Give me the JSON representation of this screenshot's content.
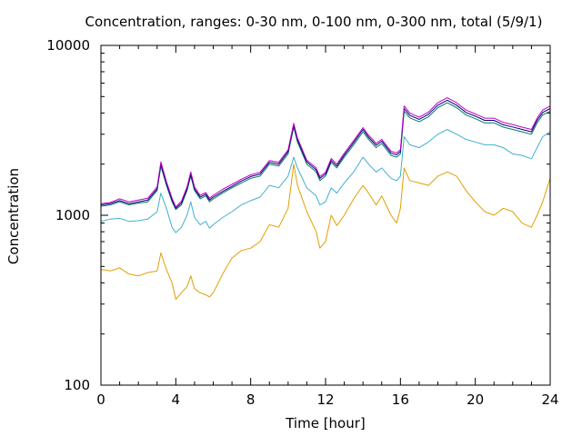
{
  "chart_data": {
    "type": "line",
    "title": "Concentration, ranges: 0-30 nm, 0-100 nm, 0-300 nm, total (5/9/1)",
    "xlabel": "Time [hour]",
    "ylabel": "Concentration",
    "xlim": [
      0,
      24
    ],
    "ylim": [
      100,
      10000
    ],
    "yscale": "log",
    "grid": false,
    "x_ticks": [
      0,
      4,
      8,
      12,
      16,
      20,
      24
    ],
    "y_ticks": [
      100,
      1000,
      10000
    ],
    "x_tick_labels": [
      "0",
      "4",
      "8",
      "12",
      "16",
      "20",
      "24"
    ],
    "y_tick_labels": [
      "100",
      "1000",
      "10000"
    ],
    "series": [
      {
        "color": "#e0a000",
        "points": [
          [
            0,
            480
          ],
          [
            0.5,
            470
          ],
          [
            1,
            490
          ],
          [
            1.5,
            450
          ],
          [
            2,
            440
          ],
          [
            2.5,
            460
          ],
          [
            3,
            470
          ],
          [
            3.2,
            600
          ],
          [
            3.5,
            480
          ],
          [
            3.8,
            400
          ],
          [
            4,
            320
          ],
          [
            4.3,
            350
          ],
          [
            4.6,
            380
          ],
          [
            4.8,
            440
          ],
          [
            5,
            370
          ],
          [
            5.3,
            350
          ],
          [
            5.6,
            340
          ],
          [
            5.8,
            330
          ],
          [
            6,
            350
          ],
          [
            6.5,
            450
          ],
          [
            7,
            560
          ],
          [
            7.5,
            620
          ],
          [
            8,
            640
          ],
          [
            8.5,
            700
          ],
          [
            9,
            880
          ],
          [
            9.5,
            850
          ],
          [
            10,
            1100
          ],
          [
            10.3,
            2000
          ],
          [
            10.5,
            1500
          ],
          [
            11,
            1050
          ],
          [
            11.5,
            800
          ],
          [
            11.7,
            640
          ],
          [
            12,
            700
          ],
          [
            12.3,
            1000
          ],
          [
            12.6,
            870
          ],
          [
            13,
            1000
          ],
          [
            13.5,
            1250
          ],
          [
            14,
            1500
          ],
          [
            14.3,
            1350
          ],
          [
            14.7,
            1150
          ],
          [
            15,
            1300
          ],
          [
            15.5,
            1000
          ],
          [
            15.8,
            900
          ],
          [
            16,
            1100
          ],
          [
            16.2,
            1900
          ],
          [
            16.5,
            1600
          ],
          [
            17,
            1550
          ],
          [
            17.5,
            1500
          ],
          [
            18,
            1700
          ],
          [
            18.5,
            1800
          ],
          [
            19,
            1700
          ],
          [
            19.5,
            1400
          ],
          [
            20,
            1200
          ],
          [
            20.5,
            1050
          ],
          [
            21,
            1000
          ],
          [
            21.5,
            1100
          ],
          [
            22,
            1050
          ],
          [
            22.5,
            900
          ],
          [
            23,
            850
          ],
          [
            23.3,
            1000
          ],
          [
            23.6,
            1200
          ],
          [
            24,
            1650
          ]
        ]
      },
      {
        "color": "#40b0d0",
        "points": [
          [
            0,
            920
          ],
          [
            0.5,
            950
          ],
          [
            1,
            960
          ],
          [
            1.5,
            920
          ],
          [
            2,
            930
          ],
          [
            2.5,
            950
          ],
          [
            3,
            1050
          ],
          [
            3.2,
            1350
          ],
          [
            3.5,
            1100
          ],
          [
            3.8,
            850
          ],
          [
            4,
            790
          ],
          [
            4.3,
            850
          ],
          [
            4.6,
            1000
          ],
          [
            4.8,
            1200
          ],
          [
            5,
            970
          ],
          [
            5.3,
            880
          ],
          [
            5.6,
            920
          ],
          [
            5.8,
            840
          ],
          [
            6,
            880
          ],
          [
            6.5,
            970
          ],
          [
            7,
            1050
          ],
          [
            7.5,
            1150
          ],
          [
            8,
            1220
          ],
          [
            8.5,
            1280
          ],
          [
            9,
            1500
          ],
          [
            9.5,
            1450
          ],
          [
            10,
            1700
          ],
          [
            10.3,
            2200
          ],
          [
            10.5,
            1900
          ],
          [
            11,
            1450
          ],
          [
            11.5,
            1300
          ],
          [
            11.7,
            1150
          ],
          [
            12,
            1200
          ],
          [
            12.3,
            1450
          ],
          [
            12.6,
            1350
          ],
          [
            13,
            1550
          ],
          [
            13.5,
            1800
          ],
          [
            14,
            2200
          ],
          [
            14.3,
            2000
          ],
          [
            14.7,
            1800
          ],
          [
            15,
            1900
          ],
          [
            15.5,
            1650
          ],
          [
            15.8,
            1600
          ],
          [
            16,
            1700
          ],
          [
            16.2,
            2900
          ],
          [
            16.5,
            2600
          ],
          [
            17,
            2500
          ],
          [
            17.5,
            2700
          ],
          [
            18,
            3000
          ],
          [
            18.5,
            3200
          ],
          [
            19,
            3000
          ],
          [
            19.5,
            2800
          ],
          [
            20,
            2700
          ],
          [
            20.5,
            2600
          ],
          [
            21,
            2600
          ],
          [
            21.5,
            2500
          ],
          [
            22,
            2300
          ],
          [
            22.5,
            2250
          ],
          [
            23,
            2150
          ],
          [
            23.3,
            2500
          ],
          [
            23.6,
            2900
          ],
          [
            24,
            3100
          ]
        ]
      },
      {
        "color": "#0a7a60",
        "points": [
          [
            0,
            1130
          ],
          [
            0.5,
            1150
          ],
          [
            1,
            1200
          ],
          [
            1.5,
            1150
          ],
          [
            2,
            1180
          ],
          [
            2.5,
            1200
          ],
          [
            3,
            1400
          ],
          [
            3.2,
            1950
          ],
          [
            3.5,
            1500
          ],
          [
            3.8,
            1200
          ],
          [
            4,
            1080
          ],
          [
            4.3,
            1150
          ],
          [
            4.6,
            1400
          ],
          [
            4.8,
            1700
          ],
          [
            5,
            1400
          ],
          [
            5.3,
            1250
          ],
          [
            5.6,
            1300
          ],
          [
            5.8,
            1200
          ],
          [
            6,
            1250
          ],
          [
            6.5,
            1350
          ],
          [
            7,
            1450
          ],
          [
            7.5,
            1550
          ],
          [
            8,
            1650
          ],
          [
            8.5,
            1700
          ],
          [
            9,
            2000
          ],
          [
            9.5,
            1950
          ],
          [
            10,
            2300
          ],
          [
            10.3,
            3300
          ],
          [
            10.5,
            2700
          ],
          [
            11,
            2000
          ],
          [
            11.5,
            1800
          ],
          [
            11.7,
            1600
          ],
          [
            12,
            1700
          ],
          [
            12.3,
            2050
          ],
          [
            12.6,
            1900
          ],
          [
            13,
            2200
          ],
          [
            13.5,
            2600
          ],
          [
            14,
            3100
          ],
          [
            14.3,
            2800
          ],
          [
            14.7,
            2500
          ],
          [
            15,
            2650
          ],
          [
            15.5,
            2250
          ],
          [
            15.8,
            2200
          ],
          [
            16,
            2300
          ],
          [
            16.2,
            4100
          ],
          [
            16.5,
            3750
          ],
          [
            17,
            3550
          ],
          [
            17.5,
            3800
          ],
          [
            18,
            4300
          ],
          [
            18.5,
            4600
          ],
          [
            19,
            4300
          ],
          [
            19.5,
            3900
          ],
          [
            20,
            3700
          ],
          [
            20.5,
            3500
          ],
          [
            21,
            3500
          ],
          [
            21.5,
            3300
          ],
          [
            22,
            3200
          ],
          [
            22.5,
            3100
          ],
          [
            23,
            3000
          ],
          [
            23.3,
            3500
          ],
          [
            23.6,
            3900
          ],
          [
            24,
            4100
          ]
        ]
      },
      {
        "color": "#000080",
        "points": [
          [
            0,
            1150
          ],
          [
            0.5,
            1170
          ],
          [
            1,
            1220
          ],
          [
            1.5,
            1170
          ],
          [
            2,
            1200
          ],
          [
            2.5,
            1230
          ],
          [
            3,
            1430
          ],
          [
            3.2,
            2000
          ],
          [
            3.5,
            1540
          ],
          [
            3.8,
            1230
          ],
          [
            4,
            1100
          ],
          [
            4.3,
            1180
          ],
          [
            4.6,
            1430
          ],
          [
            4.8,
            1750
          ],
          [
            5,
            1430
          ],
          [
            5.3,
            1280
          ],
          [
            5.6,
            1330
          ],
          [
            5.8,
            1230
          ],
          [
            6,
            1280
          ],
          [
            6.5,
            1380
          ],
          [
            7,
            1480
          ],
          [
            7.5,
            1590
          ],
          [
            8,
            1690
          ],
          [
            8.5,
            1750
          ],
          [
            9,
            2050
          ],
          [
            9.5,
            2000
          ],
          [
            10,
            2370
          ],
          [
            10.3,
            3400
          ],
          [
            10.5,
            2780
          ],
          [
            11,
            2060
          ],
          [
            11.5,
            1850
          ],
          [
            11.7,
            1650
          ],
          [
            12,
            1750
          ],
          [
            12.3,
            2100
          ],
          [
            12.6,
            1950
          ],
          [
            13,
            2260
          ],
          [
            13.5,
            2680
          ],
          [
            14,
            3200
          ],
          [
            14.3,
            2880
          ],
          [
            14.7,
            2580
          ],
          [
            15,
            2730
          ],
          [
            15.5,
            2320
          ],
          [
            15.8,
            2270
          ],
          [
            16,
            2370
          ],
          [
            16.2,
            4250
          ],
          [
            16.5,
            3880
          ],
          [
            17,
            3670
          ],
          [
            17.5,
            3930
          ],
          [
            18,
            4450
          ],
          [
            18.5,
            4760
          ],
          [
            19,
            4450
          ],
          [
            19.5,
            4030
          ],
          [
            20,
            3830
          ],
          [
            20.5,
            3620
          ],
          [
            21,
            3620
          ],
          [
            21.5,
            3410
          ],
          [
            22,
            3310
          ],
          [
            22.5,
            3200
          ],
          [
            23,
            3100
          ],
          [
            23.3,
            3620
          ],
          [
            23.6,
            4030
          ],
          [
            24,
            4250
          ]
        ]
      },
      {
        "color": "#c000c0",
        "points": [
          [
            0,
            1170
          ],
          [
            0.5,
            1190
          ],
          [
            1,
            1250
          ],
          [
            1.5,
            1200
          ],
          [
            2,
            1230
          ],
          [
            2.5,
            1260
          ],
          [
            3,
            1470
          ],
          [
            3.2,
            2060
          ],
          [
            3.5,
            1580
          ],
          [
            3.8,
            1260
          ],
          [
            4,
            1120
          ],
          [
            4.3,
            1210
          ],
          [
            4.6,
            1470
          ],
          [
            4.8,
            1800
          ],
          [
            5,
            1470
          ],
          [
            5.3,
            1310
          ],
          [
            5.6,
            1360
          ],
          [
            5.8,
            1260
          ],
          [
            6,
            1310
          ],
          [
            6.5,
            1420
          ],
          [
            7,
            1520
          ],
          [
            7.5,
            1630
          ],
          [
            8,
            1730
          ],
          [
            8.5,
            1790
          ],
          [
            9,
            2100
          ],
          [
            9.5,
            2050
          ],
          [
            10,
            2430
          ],
          [
            10.3,
            3480
          ],
          [
            10.5,
            2850
          ],
          [
            11,
            2110
          ],
          [
            11.5,
            1900
          ],
          [
            11.7,
            1690
          ],
          [
            12,
            1790
          ],
          [
            12.3,
            2160
          ],
          [
            12.6,
            2000
          ],
          [
            13,
            2320
          ],
          [
            13.5,
            2750
          ],
          [
            14,
            3280
          ],
          [
            14.3,
            2960
          ],
          [
            14.7,
            2650
          ],
          [
            15,
            2800
          ],
          [
            15.5,
            2380
          ],
          [
            15.8,
            2330
          ],
          [
            16,
            2430
          ],
          [
            16.2,
            4400
          ],
          [
            16.5,
            4000
          ],
          [
            17,
            3780
          ],
          [
            17.5,
            4050
          ],
          [
            18,
            4600
          ],
          [
            18.5,
            4920
          ],
          [
            19,
            4600
          ],
          [
            19.5,
            4160
          ],
          [
            20,
            3950
          ],
          [
            20.5,
            3730
          ],
          [
            21,
            3730
          ],
          [
            21.5,
            3520
          ],
          [
            22,
            3420
          ],
          [
            22.5,
            3300
          ],
          [
            23,
            3200
          ],
          [
            23.3,
            3730
          ],
          [
            23.6,
            4160
          ],
          [
            24,
            4400
          ]
        ]
      }
    ]
  }
}
